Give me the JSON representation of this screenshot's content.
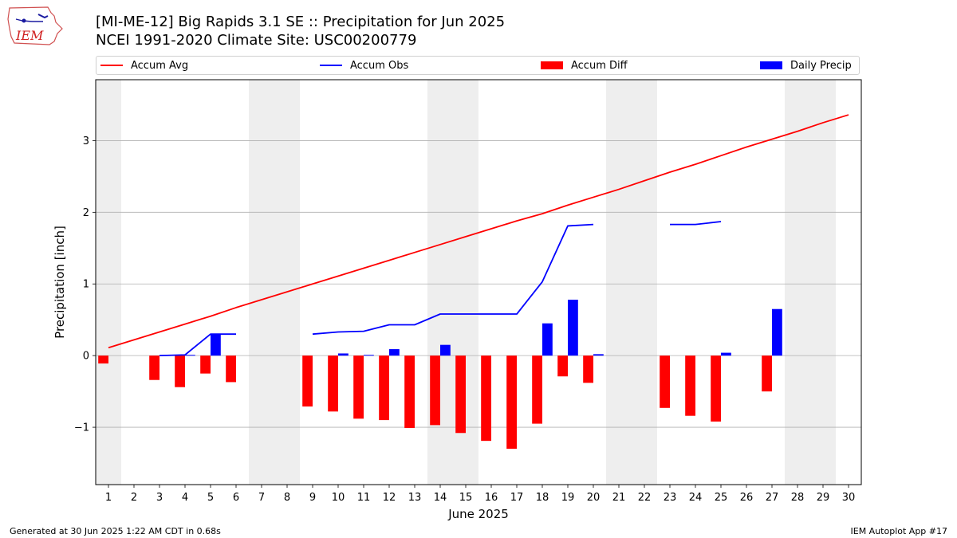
{
  "header": {
    "logo_text": "IEM",
    "title_line1": "[MI-ME-12] Big Rapids 3.1 SE :: Precipitation for Jun 2025",
    "title_line2": "NCEI 1991-2020 Climate Site: USC00200779"
  },
  "footer": {
    "left": "Generated at 30 Jun 2025 1:22 AM CDT in 0.68s",
    "right": "IEM Autoplot App #17"
  },
  "colors": {
    "accum_avg": "#ff0000",
    "accum_obs": "#0000ff",
    "accum_diff": "#ff0000",
    "daily_precip": "#0000ff",
    "weekend_shade": "#eeeeee",
    "grid": "#b0b0b0"
  },
  "chart_data": {
    "type": "bar",
    "title": "[MI-ME-12] Big Rapids 3.1 SE :: Precipitation for Jun 2025",
    "subtitle": "NCEI 1991-2020 Climate Site: USC00200779",
    "xlabel": "June 2025",
    "ylabel": "Precipitation [inch]",
    "x": [
      1,
      2,
      3,
      4,
      5,
      6,
      7,
      8,
      9,
      10,
      11,
      12,
      13,
      14,
      15,
      16,
      17,
      18,
      19,
      20,
      21,
      22,
      23,
      24,
      25,
      26,
      27,
      28,
      29,
      30
    ],
    "xlim": [
      0.5,
      30.5
    ],
    "ylim": [
      -1.8,
      3.85
    ],
    "yticks": [
      -1,
      0,
      1,
      2,
      3
    ],
    "ytick_labels": [
      "−1",
      "0",
      "1",
      "2",
      "3"
    ],
    "grid": "horizontal",
    "legend_position": "top",
    "weekend_days": [
      1,
      7,
      8,
      14,
      15,
      21,
      22,
      28,
      29
    ],
    "series": [
      {
        "name": "Accum Avg",
        "kind": "line",
        "values": [
          0.11,
          0.22,
          0.33,
          0.44,
          0.55,
          0.67,
          0.78,
          0.89,
          1.0,
          1.11,
          1.22,
          1.33,
          1.44,
          1.55,
          1.66,
          1.77,
          1.88,
          1.98,
          2.1,
          2.21,
          2.32,
          2.44,
          2.56,
          2.67,
          2.79,
          2.91,
          3.02,
          3.13,
          3.25,
          3.36
        ]
      },
      {
        "name": "Accum Obs",
        "kind": "line",
        "values": [
          null,
          null,
          0.0,
          0.01,
          0.3,
          0.3,
          null,
          null,
          0.3,
          0.33,
          0.34,
          0.43,
          0.43,
          0.58,
          0.58,
          0.58,
          0.58,
          1.03,
          1.81,
          1.83,
          null,
          null,
          1.83,
          1.83,
          1.87,
          null,
          null,
          null,
          null,
          null
        ]
      },
      {
        "name": "Accum Diff",
        "kind": "bar",
        "values": [
          -0.11,
          null,
          -0.34,
          -0.44,
          -0.25,
          -0.37,
          null,
          null,
          -0.71,
          -0.78,
          -0.88,
          -0.9,
          -1.01,
          -0.97,
          -1.08,
          -1.19,
          -1.3,
          -0.95,
          -0.29,
          -0.38,
          null,
          null,
          -0.73,
          -0.84,
          -0.92,
          null,
          -0.5,
          null,
          null,
          null
        ]
      },
      {
        "name": "Daily Precip",
        "kind": "bar",
        "values": [
          null,
          null,
          0.0,
          0.01,
          0.3,
          null,
          null,
          null,
          null,
          0.03,
          0.01,
          0.09,
          null,
          0.15,
          null,
          null,
          null,
          0.45,
          0.78,
          0.02,
          null,
          null,
          null,
          null,
          0.04,
          null,
          0.65,
          null,
          null,
          null
        ]
      }
    ]
  }
}
